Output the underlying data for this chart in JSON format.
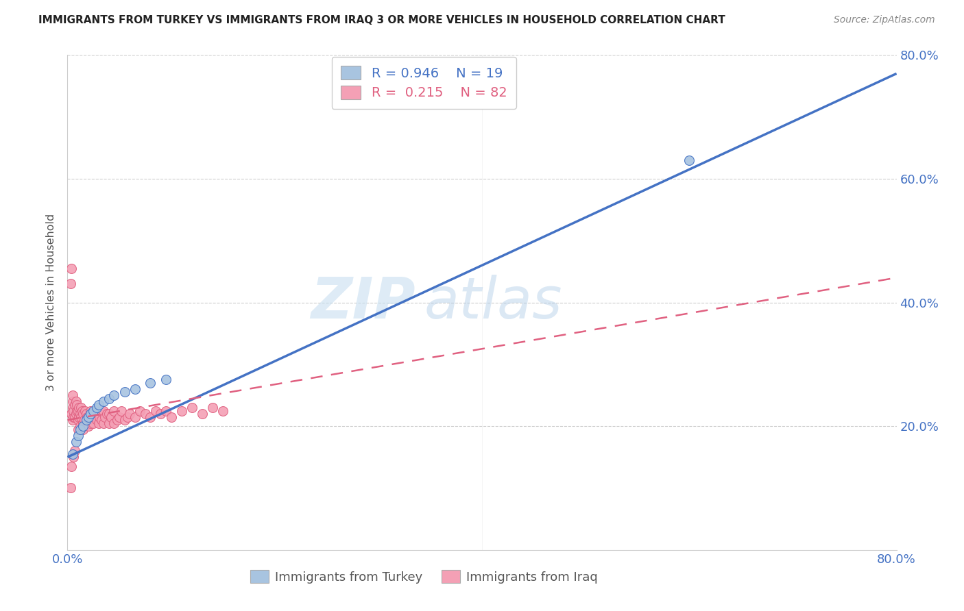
{
  "title": "IMMIGRANTS FROM TURKEY VS IMMIGRANTS FROM IRAQ 3 OR MORE VEHICLES IN HOUSEHOLD CORRELATION CHART",
  "source": "Source: ZipAtlas.com",
  "ylabel": "3 or more Vehicles in Household",
  "xlim": [
    0.0,
    0.8
  ],
  "ylim": [
    0.0,
    0.8
  ],
  "turkey_color": "#a8c4e0",
  "iraq_color": "#f4a0b5",
  "turkey_line_color": "#4472c4",
  "iraq_line_color": "#e06080",
  "R_turkey": 0.946,
  "N_turkey": 19,
  "R_iraq": 0.215,
  "N_iraq": 82,
  "watermark_zip": "ZIP",
  "watermark_atlas": "atlas",
  "legend_label_turkey": "Immigrants from Turkey",
  "legend_label_iraq": "Immigrants from Iraq",
  "background_color": "#ffffff",
  "grid_color": "#cccccc",
  "turkey_scatter_x": [
    0.005,
    0.008,
    0.01,
    0.012,
    0.015,
    0.018,
    0.02,
    0.022,
    0.025,
    0.028,
    0.03,
    0.035,
    0.04,
    0.045,
    0.055,
    0.065,
    0.08,
    0.095,
    0.6
  ],
  "turkey_scatter_y": [
    0.155,
    0.175,
    0.185,
    0.195,
    0.2,
    0.21,
    0.215,
    0.22,
    0.225,
    0.23,
    0.235,
    0.24,
    0.245,
    0.25,
    0.255,
    0.26,
    0.27,
    0.275,
    0.63
  ],
  "iraq_scatter_x": [
    0.003,
    0.004,
    0.004,
    0.005,
    0.005,
    0.005,
    0.005,
    0.006,
    0.006,
    0.007,
    0.007,
    0.008,
    0.008,
    0.009,
    0.009,
    0.01,
    0.01,
    0.01,
    0.011,
    0.011,
    0.012,
    0.012,
    0.013,
    0.013,
    0.014,
    0.015,
    0.015,
    0.015,
    0.016,
    0.017,
    0.018,
    0.018,
    0.019,
    0.02,
    0.02,
    0.021,
    0.022,
    0.022,
    0.023,
    0.024,
    0.025,
    0.025,
    0.026,
    0.027,
    0.028,
    0.03,
    0.03,
    0.031,
    0.032,
    0.033,
    0.035,
    0.035,
    0.036,
    0.038,
    0.04,
    0.04,
    0.042,
    0.045,
    0.045,
    0.048,
    0.05,
    0.052,
    0.055,
    0.058,
    0.06,
    0.065,
    0.07,
    0.075,
    0.08,
    0.085,
    0.09,
    0.095,
    0.1,
    0.11,
    0.12,
    0.13,
    0.14,
    0.15,
    0.003,
    0.004,
    0.006,
    0.007
  ],
  "iraq_scatter_y": [
    0.43,
    0.455,
    0.22,
    0.23,
    0.24,
    0.25,
    0.21,
    0.215,
    0.225,
    0.215,
    0.235,
    0.22,
    0.24,
    0.225,
    0.235,
    0.195,
    0.21,
    0.225,
    0.215,
    0.23,
    0.2,
    0.22,
    0.215,
    0.23,
    0.225,
    0.195,
    0.205,
    0.22,
    0.21,
    0.225,
    0.205,
    0.22,
    0.215,
    0.2,
    0.215,
    0.21,
    0.205,
    0.225,
    0.215,
    0.22,
    0.205,
    0.22,
    0.215,
    0.225,
    0.21,
    0.205,
    0.22,
    0.215,
    0.225,
    0.21,
    0.205,
    0.225,
    0.215,
    0.22,
    0.205,
    0.22,
    0.215,
    0.205,
    0.225,
    0.21,
    0.215,
    0.225,
    0.21,
    0.215,
    0.22,
    0.215,
    0.225,
    0.22,
    0.215,
    0.225,
    0.22,
    0.225,
    0.215,
    0.225,
    0.23,
    0.22,
    0.23,
    0.225,
    0.1,
    0.135,
    0.15,
    0.16
  ]
}
